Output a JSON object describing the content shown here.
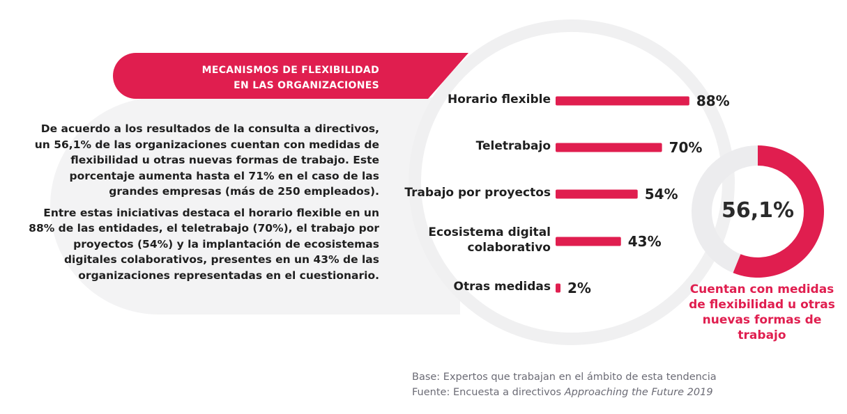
{
  "title": {
    "line1": "MECANISMOS DE FLEXIBILIDAD",
    "line2": "EN LAS ORGANIZACIONES"
  },
  "intro": {
    "paragraph1": "De acuerdo a los resultados de la consulta a directivos, un 56,1% de las organizaciones cuentan con medidas de flexibilidad u otras nuevas formas de trabajo. Este porcentaje aumenta hasta el 71% en el caso de las grandes empresas (más de 250 empleados).",
    "paragraph2": "Entre estas iniciativas destaca el horario flexible en un 88% de las entidades, el teletrabajo (70%), el trabajo por proyectos (54%) y la implantación de ecosistemas digitales colaborativos, presentes en un 43% de las organizaciones representadas en el cuestionario."
  },
  "chart_data": [
    {
      "type": "bar",
      "orientation": "horizontal",
      "categories": [
        "Horario flexible",
        "Teletrabajo",
        "Trabajo por proyectos",
        "Ecosistema digital colaborativo",
        "Otras medidas"
      ],
      "category_lines": [
        [
          "Horario flexible"
        ],
        [
          "Teletrabajo"
        ],
        [
          "Trabajo por proyectos"
        ],
        [
          "Ecosistema digital",
          "colaborativo"
        ],
        [
          "Otras medidas"
        ]
      ],
      "values": [
        88,
        70,
        54,
        43,
        2
      ],
      "value_labels": [
        "88%",
        "70%",
        "54%",
        "43%",
        "2%"
      ],
      "xlim": [
        0,
        100
      ],
      "color": "#e01e4f"
    },
    {
      "type": "pie",
      "variant": "donut",
      "values": [
        56.1,
        43.9
      ],
      "center_label": "56,1%",
      "caption": "Cuentan con medidas de flexibilidad u otras nuevas formas de trabajo",
      "colors": [
        "#e01e4f",
        "#ececee"
      ]
    }
  ],
  "footnote": {
    "base": "Base: Expertos que trabajan en el ámbito de esta tendencia",
    "source_prefix": "Fuente: Encuesta a directivos ",
    "source_title": "Approaching the Future 2019"
  },
  "colors": {
    "accent": "#e01e4f",
    "panel": "#f3f3f4",
    "ring": "#f0f0f1",
    "text": "#1f1f1f",
    "muted": "#6b6b75"
  }
}
